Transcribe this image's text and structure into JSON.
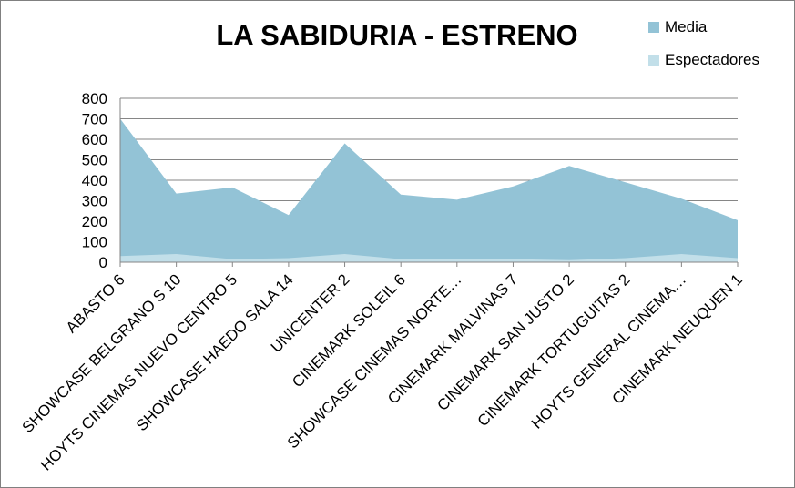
{
  "chart_data": {
    "type": "area",
    "title": "LA SABIDURIA - ESTRENO",
    "xlabel": "",
    "ylabel": "",
    "ylim": [
      0,
      800
    ],
    "yticks": [
      0,
      100,
      200,
      300,
      400,
      500,
      600,
      700,
      800
    ],
    "grid": true,
    "legend_position": "top-right",
    "categories": [
      "ABASTO 6",
      "SHOWCASE  BELGRANO  S 10",
      "HOYTS CINEMAS NUEVO CENTRO 5",
      "SHOWCASE HAEDO  SALA 14",
      "UNICENTER 2",
      "CINEMARK SOLEIL 6",
      "SHOWCASE CINEMAS  NORTE…",
      "CINEMARK MALVINAS 7",
      "CINEMARK SAN JUSTO 2",
      "CINEMARK TORTUGUITAS 2",
      "HOYTS GENERAL CINEMA…",
      "CINEMARK NEUQUEN 1"
    ],
    "series": [
      {
        "name": "Media",
        "color": "#93c3d6",
        "values": [
          700,
          335,
          365,
          230,
          580,
          330,
          305,
          370,
          470,
          390,
          310,
          205
        ]
      },
      {
        "name": "Espectadores",
        "color": "#c2dfe9",
        "values": [
          30,
          40,
          15,
          20,
          40,
          15,
          15,
          15,
          10,
          20,
          40,
          20
        ]
      }
    ]
  }
}
